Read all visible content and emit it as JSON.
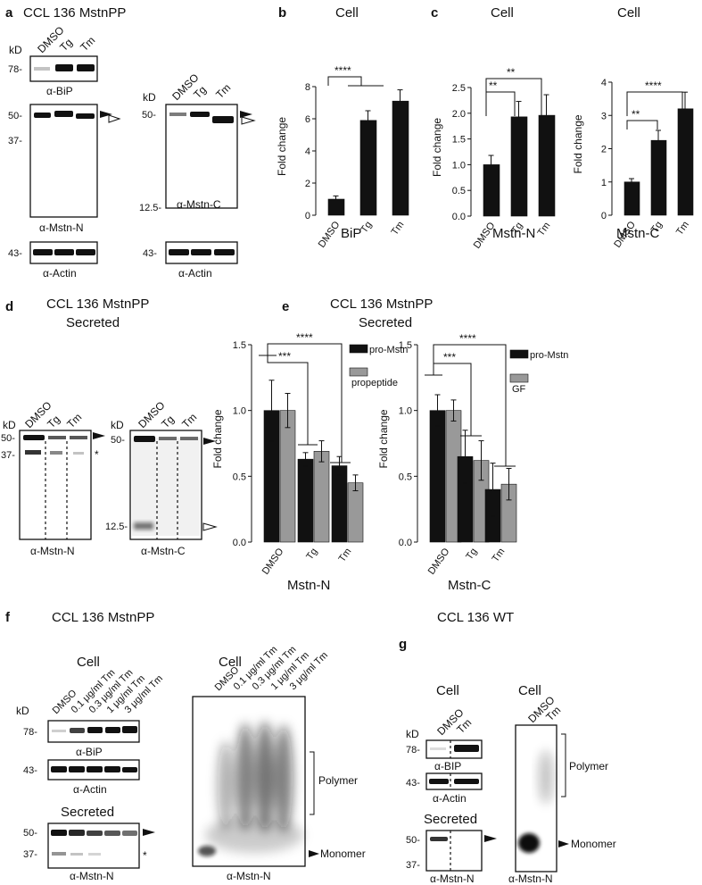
{
  "panels": {
    "a": {
      "letter": "a",
      "title": "CCL 136 MstnPP",
      "kd": "kD",
      "lanes": [
        "DMSO",
        "Tg",
        "Tm"
      ],
      "lanes_right": [
        "DMSO",
        "Tg",
        "Tm"
      ],
      "markers_left": [
        "78-",
        "50-",
        "37-",
        "43-"
      ],
      "markers_right": [
        "50-",
        "12.5-",
        "43-"
      ],
      "labels": [
        "α-BiP",
        "α-Mstn-N",
        "α-Actin",
        "α-Mstn-C",
        "α-Actin"
      ]
    },
    "b": {
      "letter": "b",
      "title": "Cell",
      "sub": "BiP"
    },
    "c": {
      "letter": "c",
      "title1": "Cell",
      "sub1": "Mstn-N",
      "title2": "Cell",
      "sub2": "Mstn-C"
    },
    "d": {
      "letter": "d",
      "title1": "CCL 136 MstnPP",
      "title2": "Secreted",
      "kd": "kD",
      "lanes": [
        "DMSO",
        "Tg",
        "Tm"
      ],
      "markers_left": [
        "50-",
        "37-"
      ],
      "markers_right": [
        "50-",
        "12.5-"
      ],
      "star": "*",
      "labels": [
        "α-Mstn-N",
        "α-Mstn-C"
      ]
    },
    "e": {
      "letter": "e",
      "title1": "CCL 136 MstnPP",
      "title2": "Secreted",
      "sub1": "Mstn-N",
      "sub2": "Mstn-C"
    },
    "f": {
      "letter": "f",
      "title": "CCL 136 MstnPP",
      "cell1": "Cell",
      "cell2": "Cell",
      "secreted": "Secreted",
      "kd": "kD",
      "lanes": [
        "DMSO",
        "0.1 μg/ml Tm",
        "0.3 μg/ml Tm",
        "1 μg/ml Tm",
        "3 μg/ml Tm"
      ],
      "lanes_right": [
        "DMSO",
        "0.1 μg/ml Tm",
        "0.3 μg/ml Tm",
        "1 μg/ml Tm",
        "3 μg/ml Tm"
      ],
      "markers": [
        "78-",
        "43-",
        "50-",
        "37-"
      ],
      "labels": [
        "α-BiP",
        "α-Actin",
        "α-Mstn-N",
        "α-Mstn-N"
      ],
      "polymer": "Polymer",
      "monomer": "Monomer",
      "star": "*"
    },
    "g": {
      "letter": "g",
      "title": "CCL 136 WT",
      "cell1": "Cell",
      "cell2": "Cell",
      "secreted": "Secreted",
      "kd": "kD",
      "lanes": [
        "DMSO",
        "Tm"
      ],
      "lanes_right": [
        "DMSO",
        "Tm"
      ],
      "markers": [
        "78-",
        "43-",
        "50-",
        "37-"
      ],
      "labels": [
        "α-BIP",
        "α-Actin",
        "α-Mstn-N",
        "α-Mstn-N"
      ],
      "polymer": "Polymer",
      "monomer": "Monomer"
    }
  },
  "chart_data": [
    {
      "type": "bar",
      "id": "b",
      "categories": [
        "DMSO",
        "Tg",
        "Tm"
      ],
      "values": [
        1.0,
        5.9,
        7.1
      ],
      "errors": [
        0.2,
        0.6,
        0.7
      ],
      "ylabel": "Fold change",
      "xlabel": "BiP",
      "ylim": [
        0,
        8
      ],
      "yticks": [
        "0",
        "2",
        "4",
        "6",
        "8"
      ],
      "significance": [
        "****"
      ]
    },
    {
      "type": "bar",
      "id": "c1",
      "categories": [
        "DMSO",
        "Tg",
        "Tm"
      ],
      "values": [
        1.0,
        1.93,
        1.96
      ],
      "errors": [
        0.18,
        0.3,
        0.4
      ],
      "ylabel": "Fold change",
      "xlabel": "Mstn-N",
      "ylim": [
        0,
        2.5
      ],
      "yticks": [
        "0.0",
        "0.5",
        "1.0",
        "1.5",
        "2.0",
        "2.5"
      ],
      "significance": [
        "**",
        "**"
      ]
    },
    {
      "type": "bar",
      "id": "c2",
      "categories": [
        "DMSO",
        "Tg",
        "Tm"
      ],
      "values": [
        1.0,
        2.25,
        3.2
      ],
      "errors": [
        0.1,
        0.3,
        0.5
      ],
      "ylabel": "Fold change",
      "xlabel": "Mstn-C",
      "ylim": [
        0,
        4
      ],
      "yticks": [
        "0",
        "1",
        "2",
        "3",
        "4"
      ],
      "significance": [
        "**",
        "****"
      ]
    },
    {
      "type": "bar",
      "id": "e1",
      "categories": [
        "DMSO",
        "Tg",
        "Tm"
      ],
      "series": [
        {
          "name": "pro-Mstn",
          "color": "#111111",
          "values": [
            1.0,
            0.63,
            0.58
          ],
          "errors": [
            0.23,
            0.05,
            0.07
          ]
        },
        {
          "name": "propeptide",
          "color": "#999999",
          "values": [
            1.0,
            0.69,
            0.45
          ],
          "errors": [
            0.13,
            0.08,
            0.06
          ]
        }
      ],
      "ylabel": "Fold change",
      "xlabel": "Mstn-N",
      "ylim": [
        0,
        1.5
      ],
      "yticks": [
        "0.0",
        "0.5",
        "1.0",
        "1.5"
      ],
      "significance": [
        "***",
        "****"
      ]
    },
    {
      "type": "bar",
      "id": "e2",
      "categories": [
        "DMSO",
        "Tg",
        "Tm"
      ],
      "series": [
        {
          "name": "pro-Mstn",
          "color": "#111111",
          "values": [
            1.0,
            0.65,
            0.4
          ],
          "errors": [
            0.12,
            0.2,
            0.2
          ]
        },
        {
          "name": "GF",
          "color": "#999999",
          "values": [
            1.0,
            0.62,
            0.44
          ],
          "errors": [
            0.08,
            0.15,
            0.12
          ]
        }
      ],
      "ylabel": "Fold change",
      "xlabel": "Mstn-C",
      "ylim": [
        0,
        1.5
      ],
      "yticks": [
        "0.0",
        "0.5",
        "1.0",
        "1.5"
      ],
      "significance": [
        "***",
        "****"
      ]
    }
  ]
}
